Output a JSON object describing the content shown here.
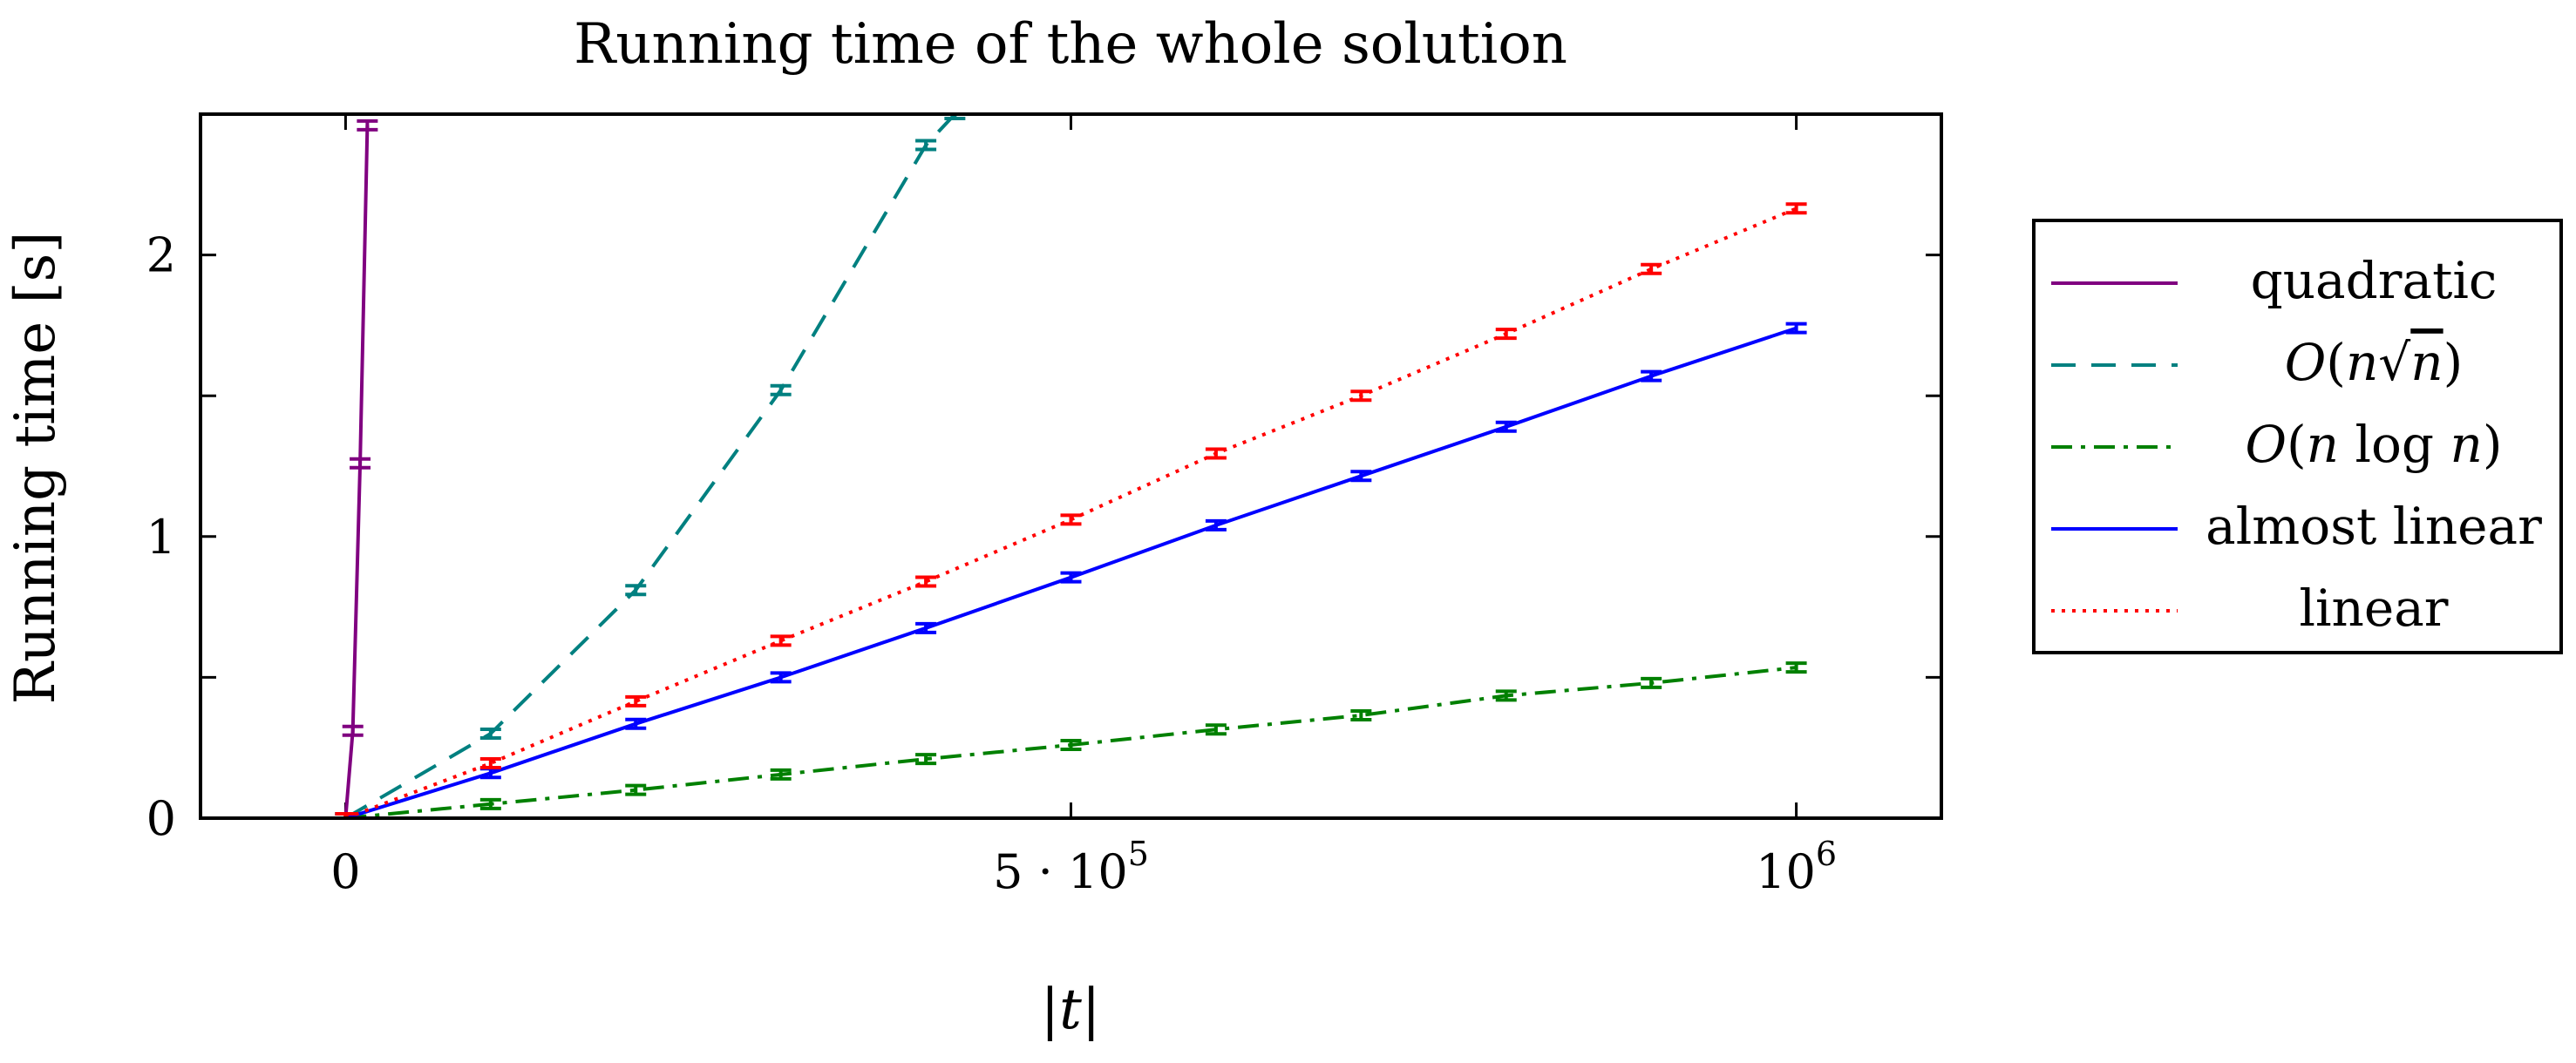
{
  "chart_data": {
    "type": "line",
    "title": "Running time of the whole solution",
    "xlabel": "|t|",
    "ylabel": "Running time [s]",
    "xlim": [
      -100000,
      1100000
    ],
    "ylim": [
      0,
      2.5
    ],
    "grid": false,
    "legend_position": "outside-right",
    "x_ticks": [
      {
        "value": 0,
        "label": "0",
        "base": "",
        "exponent": ""
      },
      {
        "value": 500000,
        "label": "",
        "base": "5 · 10",
        "exponent": "5"
      },
      {
        "value": 1000000,
        "label": "",
        "base": "10",
        "exponent": "6"
      }
    ],
    "y_ticks": [
      {
        "value": 0,
        "label": "0"
      },
      {
        "value": 1,
        "label": "1"
      },
      {
        "value": 2,
        "label": "2"
      }
    ],
    "series": [
      {
        "name": "quadratic",
        "legend_parts": [
          {
            "text": "quadratic",
            "italic": false
          }
        ],
        "color": "#800080",
        "dash": "",
        "x": [
          0,
          5000,
          10000,
          15000
        ],
        "y": [
          0,
          0.31,
          1.26,
          2.46
        ]
      },
      {
        "name": "O(n√n)",
        "legend_parts": [
          {
            "text": "O",
            "italic": true
          },
          {
            "text": "(",
            "italic": false
          },
          {
            "text": "n",
            "italic": true
          },
          {
            "text": "√",
            "italic": false
          },
          {
            "text": "n",
            "italic": true,
            "overline": true
          },
          {
            "text": ")",
            "italic": false
          }
        ],
        "color": "#008080",
        "dash": "28,18",
        "x": [
          0,
          100000,
          200000,
          300000,
          400000,
          420000
        ],
        "y": [
          0,
          0.3,
          0.81,
          1.52,
          2.39,
          2.5
        ]
      },
      {
        "name": "O(n log n)",
        "legend_parts": [
          {
            "text": "O",
            "italic": true
          },
          {
            "text": "(",
            "italic": false
          },
          {
            "text": "n",
            "italic": true
          },
          {
            "text": " log ",
            "italic": false
          },
          {
            "text": "n",
            "italic": true
          },
          {
            "text": ")",
            "italic": false
          }
        ],
        "color": "#008000",
        "dash": "24,10,5,10",
        "x": [
          0,
          100000,
          200000,
          300000,
          400000,
          500000,
          600000,
          700000,
          800000,
          900000,
          1000000
        ],
        "y": [
          0,
          0.05,
          0.1,
          0.155,
          0.21,
          0.26,
          0.315,
          0.365,
          0.435,
          0.48,
          0.535
        ]
      },
      {
        "name": "almost linear",
        "legend_parts": [
          {
            "text": "almost linear",
            "italic": false
          }
        ],
        "color": "#0000ff",
        "dash": "",
        "x": [
          0,
          100000,
          200000,
          300000,
          400000,
          500000,
          600000,
          700000,
          800000,
          900000,
          1000000
        ],
        "y": [
          0,
          0.16,
          0.335,
          0.5,
          0.675,
          0.855,
          1.04,
          1.215,
          1.39,
          1.57,
          1.74
        ]
      },
      {
        "name": "linear",
        "legend_parts": [
          {
            "text": "linear",
            "italic": false
          }
        ],
        "color": "#ff0000",
        "dash": "4,8",
        "x": [
          0,
          100000,
          200000,
          300000,
          400000,
          500000,
          600000,
          700000,
          800000,
          900000,
          1000000
        ],
        "y": [
          0,
          0.195,
          0.415,
          0.63,
          0.84,
          1.06,
          1.295,
          1.5,
          1.72,
          1.95,
          2.165
        ]
      }
    ]
  }
}
